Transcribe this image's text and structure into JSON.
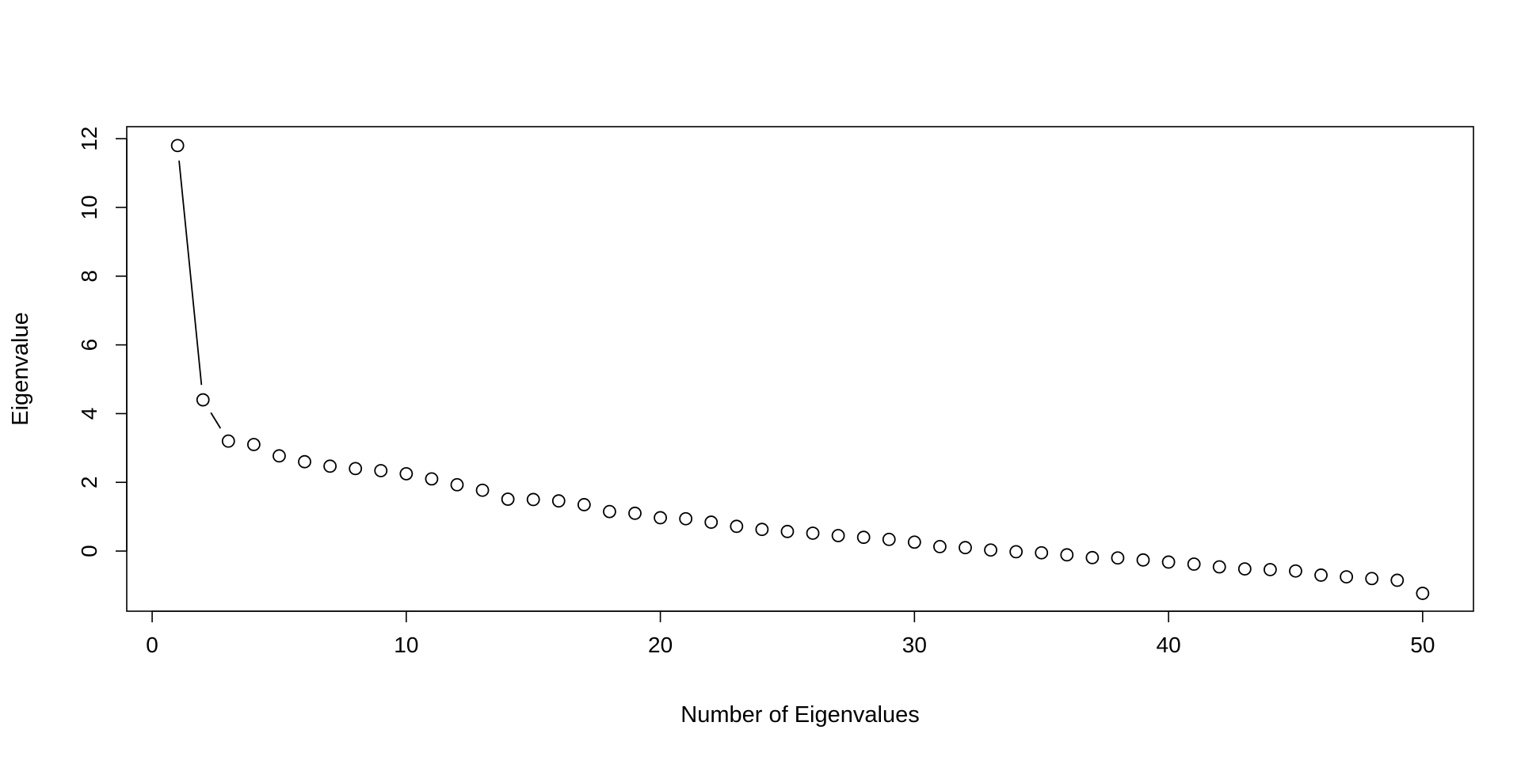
{
  "chart_data": {
    "type": "scatter",
    "title": "",
    "xlabel": "Number of Eigenvalues",
    "ylabel": "Eigenvalue",
    "xlim": [
      -1,
      52
    ],
    "ylim": [
      -1.75,
      12.35
    ],
    "xticks": [
      0,
      10,
      20,
      30,
      40,
      50
    ],
    "yticks": [
      0,
      2,
      4,
      6,
      8,
      10,
      12
    ],
    "grid": false,
    "legend": "none",
    "colors": {
      "marker_stroke": "#000000",
      "marker_fill": "#ffffff",
      "line": "#000000",
      "frame": "#000000"
    },
    "connecting_line_points": 3,
    "x": [
      1,
      2,
      3,
      4,
      5,
      6,
      7,
      8,
      9,
      10,
      11,
      12,
      13,
      14,
      15,
      16,
      17,
      18,
      19,
      20,
      21,
      22,
      23,
      24,
      25,
      26,
      27,
      28,
      29,
      30,
      31,
      32,
      33,
      34,
      35,
      36,
      37,
      38,
      39,
      40,
      41,
      42,
      43,
      44,
      45,
      46,
      47,
      48,
      49,
      50
    ],
    "y": [
      11.8,
      4.4,
      3.2,
      3.1,
      2.77,
      2.6,
      2.47,
      2.4,
      2.34,
      2.25,
      2.1,
      1.93,
      1.77,
      1.51,
      1.5,
      1.46,
      1.35,
      1.15,
      1.1,
      0.97,
      0.94,
      0.84,
      0.72,
      0.63,
      0.57,
      0.52,
      0.45,
      0.4,
      0.34,
      0.26,
      0.13,
      0.1,
      0.03,
      -0.02,
      -0.05,
      -0.11,
      -0.19,
      -0.2,
      -0.26,
      -0.32,
      -0.38,
      -0.46,
      -0.52,
      -0.54,
      -0.58,
      -0.7,
      -0.75,
      -0.8,
      -0.85,
      -1.23
    ]
  }
}
